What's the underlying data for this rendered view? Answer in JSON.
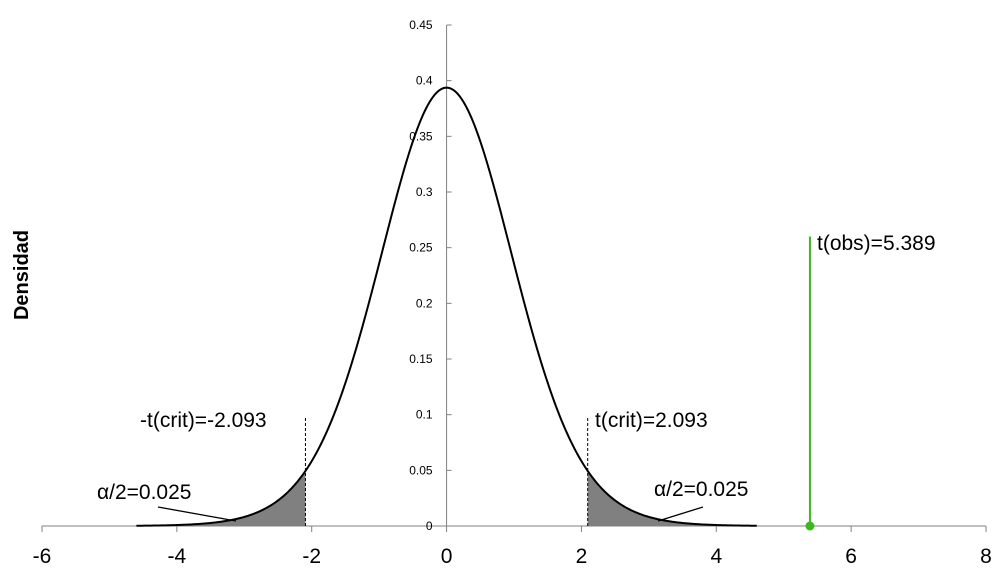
{
  "chart_data": {
    "type": "line",
    "title": "",
    "xlabel": "",
    "ylabel": "Densidad",
    "xlim": [
      -6,
      8
    ],
    "ylim": [
      0,
      0.45
    ],
    "x_ticks": [
      "-6",
      "-4",
      "-2",
      "0",
      "2",
      "4",
      "6",
      "8"
    ],
    "y_ticks": [
      "0",
      "0.05",
      "0.1",
      "0.15",
      "0.2",
      "0.25",
      "0.3",
      "0.35",
      "0.4",
      "0.45"
    ],
    "grid": false,
    "legend": "none",
    "series": [
      {
        "distribution": "student-t",
        "degrees_of_freedom": 19,
        "x_range": [
          -4.6,
          4.6
        ],
        "color": "#000000"
      }
    ],
    "critical_value": 2.093,
    "observed_value": 5.389,
    "observed_line_top": 0.26,
    "annotations": {
      "neg_crit_label": "-t(crit)=-2.093",
      "pos_crit_label": "t(crit)=2.093",
      "alpha_left_label": "α/2=0.025",
      "alpha_right_label": "α/2=0.025",
      "obs_label": "t(obs)=5.389"
    },
    "colors": {
      "shade": "#808080",
      "observed": "#3cb81f",
      "curve": "#000000"
    }
  }
}
